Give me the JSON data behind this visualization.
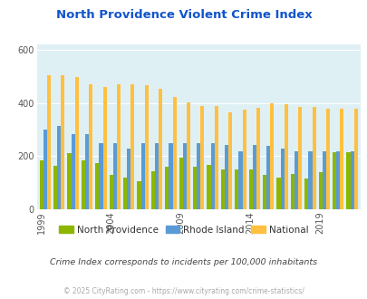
{
  "title": "North Providence Violent Crime Index",
  "years": [
    1999,
    2000,
    2001,
    2002,
    2003,
    2004,
    2005,
    2006,
    2007,
    2008,
    2009,
    2010,
    2011,
    2012,
    2013,
    2014,
    2015,
    2016,
    2017,
    2018,
    2019,
    2020,
    2021
  ],
  "north_providence": [
    185,
    165,
    213,
    185,
    175,
    130,
    120,
    107,
    145,
    160,
    195,
    160,
    168,
    150,
    152,
    152,
    130,
    120,
    133,
    115,
    140,
    215,
    215
  ],
  "rhode_island": [
    300,
    313,
    285,
    285,
    248,
    250,
    230,
    248,
    250,
    250,
    250,
    248,
    250,
    243,
    220,
    243,
    238,
    230,
    220,
    220,
    220,
    220,
    220
  ],
  "national": [
    507,
    507,
    500,
    473,
    462,
    470,
    473,
    468,
    455,
    425,
    404,
    390,
    388,
    365,
    375,
    382,
    398,
    397,
    385,
    385,
    380,
    380,
    378
  ],
  "north_providence_color": "#8db600",
  "rhode_island_color": "#5b9bd5",
  "national_color": "#ffc040",
  "plot_bg_color": "#dff0f5",
  "ylim": [
    0,
    620
  ],
  "xtick_years": [
    1999,
    2004,
    2009,
    2014,
    2019
  ],
  "subtitle": "Crime Index corresponds to incidents per 100,000 inhabitants",
  "footer": "© 2025 CityRating.com - https://www.cityrating.com/crime-statistics/",
  "title_color": "#1155cc",
  "subtitle_color": "#444444",
  "footer_color": "#aaaaaa"
}
